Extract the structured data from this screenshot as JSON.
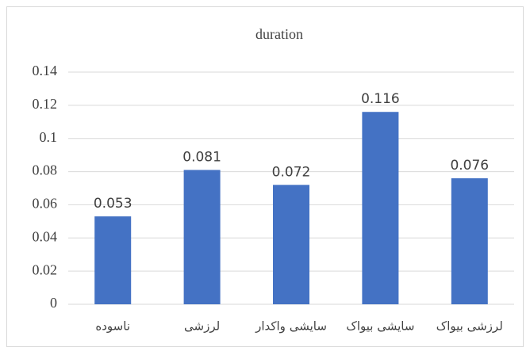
{
  "chart_data": {
    "type": "bar",
    "title": "duration",
    "categories": [
      "ناسوده",
      "لرزشی",
      "سایشی واکدار",
      "سایشی بیواک",
      "لرزشی بیواک"
    ],
    "values": [
      0.053,
      0.081,
      0.072,
      0.116,
      0.076
    ],
    "color": "#4472c4",
    "ylim": [
      0,
      0.14
    ],
    "yticks": [
      0,
      0.02,
      0.04,
      0.06,
      0.08,
      0.1,
      0.12,
      0.14
    ],
    "grid": true
  }
}
